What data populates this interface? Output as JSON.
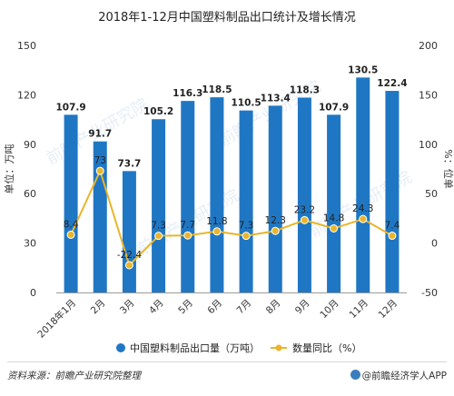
{
  "title": "2018年1-12月中国塑料制品出口统计及增长情况",
  "chart_data": {
    "type": "bar",
    "categories": [
      "2018年1月",
      "2月",
      "3月",
      "4月",
      "5月",
      "6月",
      "7月",
      "8月",
      "9月",
      "10月",
      "11月",
      "12月"
    ],
    "series": [
      {
        "name": "中国塑料制品出口量（万吨）",
        "type": "bar",
        "axis": "left",
        "values": [
          107.9,
          91.7,
          73.7,
          105.2,
          116.3,
          118.5,
          110.5,
          113.4,
          118.3,
          107.9,
          130.5,
          122.4
        ],
        "labels": [
          "107.9",
          "91.7",
          "73.7",
          "105.2",
          "116.3",
          "118.5",
          "110.5",
          "113.4",
          "118.3",
          "107.9",
          "130.5",
          "122.4"
        ]
      },
      {
        "name": "数量同比（%）",
        "type": "line",
        "axis": "right",
        "values": [
          8.4,
          73,
          -22.4,
          7.3,
          7.7,
          11.8,
          7.3,
          12.3,
          23.2,
          14.8,
          24.3,
          7.4
        ],
        "labels": [
          "8.4",
          "73",
          "-22.4",
          "7.3",
          "7.7",
          "11.8",
          "7.3",
          "12.3",
          "23.2",
          "14.8",
          "24.3",
          "7.4"
        ]
      }
    ],
    "ylabel_left": "单位：万吨",
    "ylabel_right": "%：位单",
    "ylim_left": [
      0,
      150
    ],
    "ylim_right": [
      -50,
      200
    ],
    "yticks_left": [
      "0",
      "30",
      "60",
      "90",
      "120",
      "150"
    ],
    "yticks_right": [
      "-50",
      "0",
      "50",
      "100",
      "150",
      "200"
    ],
    "legend_position": "bottom",
    "grid": false,
    "colors": {
      "bar": "#1f77c4",
      "line": "#e8b52c",
      "text": "#333333",
      "axis": "#9a9a9a"
    }
  },
  "footer": {
    "source": "资料来源：前瞻产业研究院整理",
    "brand": "@前瞻经济学人APP"
  },
  "watermark": "前瞻产业研究院"
}
